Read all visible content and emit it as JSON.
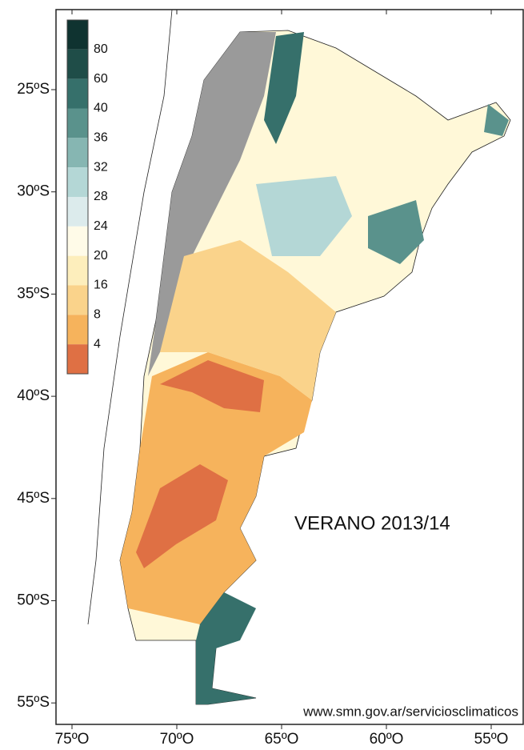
{
  "map": {
    "title": "VERANO 2013/14",
    "source": "www.smn.gov.ar/serviciosclimaticos",
    "lat_labels": [
      "25ºS",
      "30ºS",
      "35ºS",
      "40ºS",
      "45ºS",
      "50ºS",
      "55ºS"
    ],
    "lon_labels": [
      "75ºO",
      "70ºO",
      "65ºO",
      "60ºO",
      "55ºO"
    ],
    "legend": {
      "labels": [
        "80",
        "60",
        "40",
        "36",
        "32",
        "28",
        "24",
        "20",
        "16",
        "8",
        "4"
      ],
      "colors": [
        "#0f3330",
        "#1f4d48",
        "#36706b",
        "#5a928c",
        "#86b6b2",
        "#b4d7d6",
        "#dcebec",
        "#fffbe8",
        "#fdeebc",
        "#fad38b",
        "#f6b35c",
        "#df7044"
      ]
    }
  }
}
